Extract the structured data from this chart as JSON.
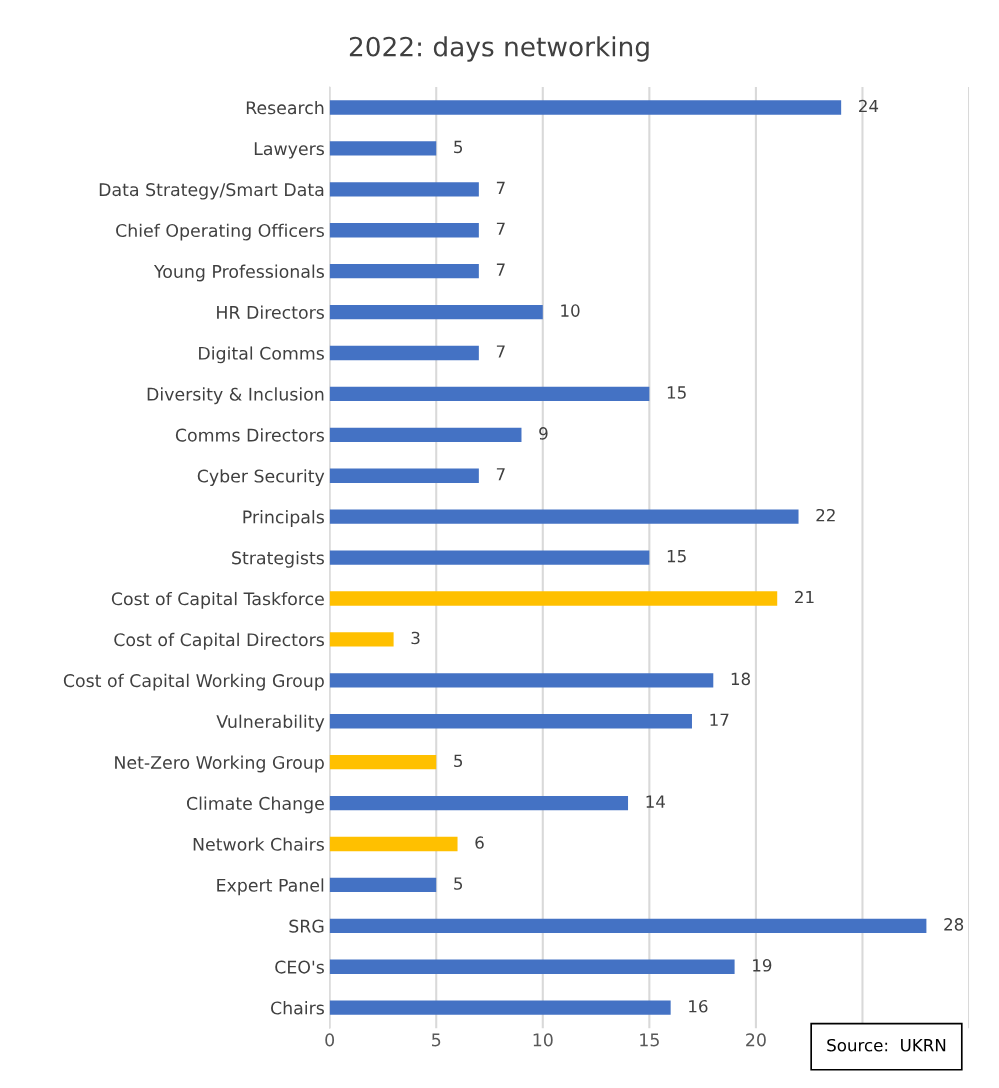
{
  "chart_data": {
    "type": "bar",
    "orientation": "horizontal",
    "title": "2022: days networking",
    "categories": [
      "Research",
      "Lawyers",
      "Data Strategy/Smart Data",
      "Chief Operating Officers",
      "Young Professionals",
      "HR Directors",
      "Digital Comms",
      "Diversity & Inclusion",
      "Comms Directors",
      "Cyber Security",
      "Principals",
      "Strategists",
      "Cost of Capital Taskforce",
      "Cost of Capital Directors",
      "Cost of Capital Working Group",
      "Vulnerability",
      "Net-Zero Working Group",
      "Climate Change",
      "Network Chairs",
      "Expert Panel",
      "SRG",
      "CEO's",
      "Chairs"
    ],
    "values": [
      24,
      5,
      7,
      7,
      7,
      10,
      7,
      15,
      9,
      7,
      22,
      15,
      21,
      3,
      18,
      17,
      5,
      14,
      6,
      5,
      28,
      19,
      16
    ],
    "colors": [
      "#4472c4",
      "#4472c4",
      "#4472c4",
      "#4472c4",
      "#4472c4",
      "#4472c4",
      "#4472c4",
      "#4472c4",
      "#4472c4",
      "#4472c4",
      "#4472c4",
      "#4472c4",
      "#ffc000",
      "#ffc000",
      "#4472c4",
      "#4472c4",
      "#ffc000",
      "#4472c4",
      "#ffc000",
      "#4472c4",
      "#4472c4",
      "#4472c4",
      "#4472c4"
    ],
    "xlim": [
      0,
      30
    ],
    "xticks": [
      0,
      5,
      10,
      15,
      20,
      {
        "value": 25,
        "label": null
      },
      {
        "value": 30,
        "label": null
      }
    ],
    "grid": "x",
    "data_labels": true,
    "annotations": [
      "Source:  UKRN"
    ]
  }
}
